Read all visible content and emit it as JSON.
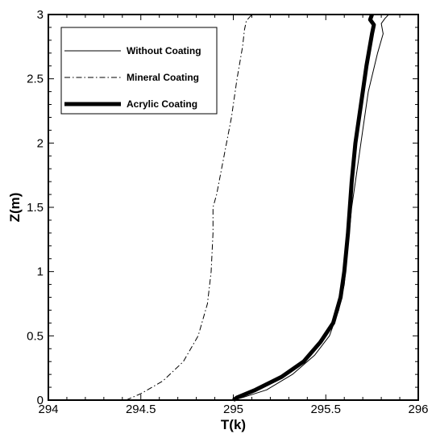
{
  "chart_data": {
    "type": "line",
    "xlabel": "T(k)",
    "ylabel": "Z(m)",
    "xlim": [
      294,
      296
    ],
    "ylim": [
      0,
      3
    ],
    "x_ticks": [
      "294",
      "294.5",
      "295",
      "295.5",
      "296"
    ],
    "y_ticks": [
      "0",
      "0.5",
      "1",
      "1.5",
      "2",
      "2.5",
      "3"
    ],
    "grid": false,
    "legend_position": "top-left",
    "series": [
      {
        "name": "Without Coating",
        "style": "thin-solid",
        "points": [
          [
            295.0,
            0.0
          ],
          [
            295.05,
            0.02
          ],
          [
            295.18,
            0.08
          ],
          [
            295.32,
            0.2
          ],
          [
            295.44,
            0.35
          ],
          [
            295.52,
            0.5
          ],
          [
            295.57,
            0.7
          ],
          [
            295.6,
            0.9
          ],
          [
            295.62,
            1.2
          ],
          [
            295.64,
            1.5
          ],
          [
            295.67,
            1.8
          ],
          [
            295.7,
            2.1
          ],
          [
            295.73,
            2.4
          ],
          [
            295.78,
            2.7
          ],
          [
            295.81,
            2.85
          ],
          [
            295.8,
            2.93
          ],
          [
            295.82,
            2.97
          ],
          [
            295.84,
            3.0
          ]
        ]
      },
      {
        "name": "Mineral Coating",
        "style": "dash-dot",
        "points": [
          [
            294.42,
            0.0
          ],
          [
            294.5,
            0.05
          ],
          [
            294.62,
            0.15
          ],
          [
            294.73,
            0.3
          ],
          [
            294.81,
            0.5
          ],
          [
            294.86,
            0.75
          ],
          [
            294.88,
            1.0
          ],
          [
            294.89,
            1.3
          ],
          [
            294.89,
            1.5
          ],
          [
            294.91,
            1.6
          ],
          [
            294.95,
            1.9
          ],
          [
            294.99,
            2.2
          ],
          [
            295.02,
            2.5
          ],
          [
            295.05,
            2.75
          ],
          [
            295.06,
            2.88
          ],
          [
            295.07,
            2.95
          ],
          [
            295.1,
            3.0
          ]
        ]
      },
      {
        "name": "Acrylic Coating",
        "style": "thick-solid",
        "points": [
          [
            295.0,
            0.0
          ],
          [
            295.02,
            0.02
          ],
          [
            295.12,
            0.08
          ],
          [
            295.26,
            0.18
          ],
          [
            295.38,
            0.3
          ],
          [
            295.47,
            0.45
          ],
          [
            295.54,
            0.6
          ],
          [
            295.58,
            0.8
          ],
          [
            295.6,
            1.0
          ],
          [
            295.62,
            1.3
          ],
          [
            295.63,
            1.5
          ],
          [
            295.64,
            1.7
          ],
          [
            295.66,
            2.0
          ],
          [
            295.69,
            2.3
          ],
          [
            295.72,
            2.6
          ],
          [
            295.75,
            2.85
          ],
          [
            295.76,
            2.92
          ],
          [
            295.74,
            2.96
          ],
          [
            295.75,
            3.0
          ]
        ]
      }
    ]
  }
}
